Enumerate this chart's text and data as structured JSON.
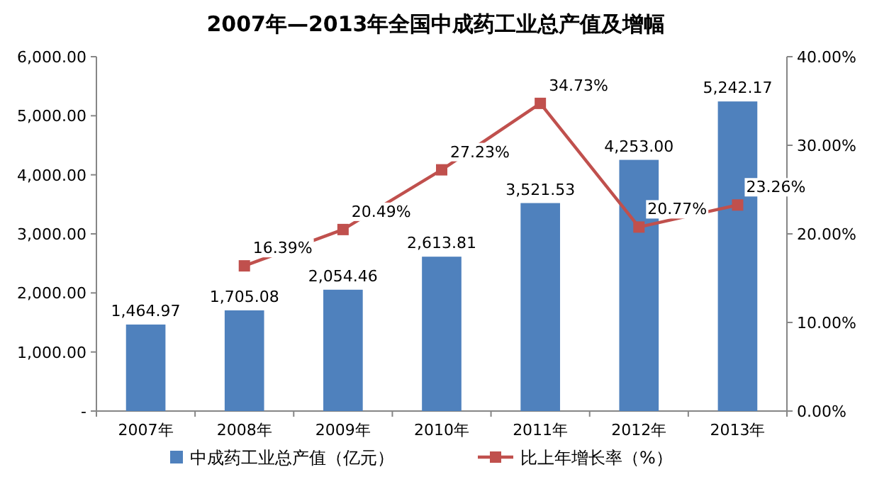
{
  "chart_data": {
    "type": "bar",
    "title": "2007年—2013年全国中成药工业总产值及增幅",
    "categories": [
      "2007年",
      "2008年",
      "2009年",
      "2010年",
      "2011年",
      "2012年",
      "2013年"
    ],
    "series": [
      {
        "name": "中成药工业总产值（亿元）",
        "color": "#4f81bd",
        "values": [
          1464.97,
          1705.08,
          2054.46,
          2613.81,
          3521.53,
          4253.0,
          5242.17
        ],
        "value_labels": [
          "1,464.97",
          "1,705.08",
          "2,054.46",
          "2,613.81",
          "3,521.53",
          "4,253.00",
          "5,242.17"
        ]
      },
      {
        "name": "比上年增长率（%）",
        "type": "line",
        "axis": "y2",
        "marker": "square",
        "color": "#c0504d",
        "values": [
          null,
          16.39,
          20.49,
          27.23,
          34.73,
          20.77,
          23.26
        ],
        "value_labels": [
          null,
          "16.39%",
          "20.49%",
          "27.23%",
          "34.73%",
          "20.77%",
          "23.26%"
        ]
      }
    ],
    "ylim": [
      0,
      6000
    ],
    "yticks": [
      {
        "value": 0,
        "label": "-"
      },
      {
        "value": 1000,
        "label": "1,000.00"
      },
      {
        "value": 2000,
        "label": "2,000.00"
      },
      {
        "value": 3000,
        "label": "3,000.00"
      },
      {
        "value": 4000,
        "label": "4,000.00"
      },
      {
        "value": 5000,
        "label": "5,000.00"
      },
      {
        "value": 6000,
        "label": "6,000.00"
      }
    ],
    "y2lim": [
      0,
      40
    ],
    "y2ticks": [
      {
        "value": 0,
        "label": "0.00%"
      },
      {
        "value": 10,
        "label": "10.00%"
      },
      {
        "value": 20,
        "label": "20.00%"
      },
      {
        "value": 30,
        "label": "30.00%"
      },
      {
        "value": 40,
        "label": "40.00%"
      }
    ],
    "legend": "bottom"
  }
}
